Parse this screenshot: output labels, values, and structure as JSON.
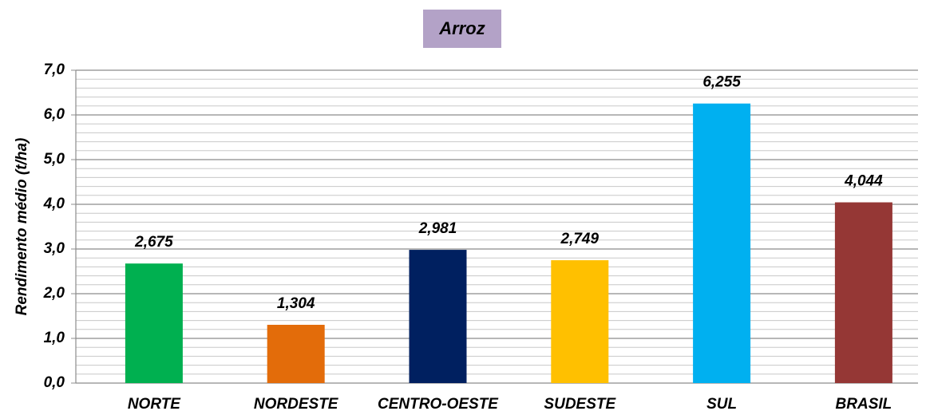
{
  "chart_data": {
    "type": "bar",
    "title": "Arroz",
    "ylabel": "Rendimento médio (t/ha)",
    "categories": [
      "NORTE",
      "NORDESTE",
      "CENTRO-OESTE",
      "SUDESTE",
      "SUL",
      "BRASIL"
    ],
    "values": [
      2.675,
      1.304,
      2.981,
      2.749,
      6.255,
      4.044
    ],
    "value_labels": [
      "2,675",
      "1,304",
      "2,981",
      "2,749",
      "6,255",
      "4,044"
    ],
    "colors": [
      "#00b050",
      "#e36c0a",
      "#002060",
      "#ffc000",
      "#00b0f0",
      "#953735"
    ],
    "ylim": [
      0,
      7
    ],
    "yticks": [
      {
        "value": 0,
        "label": "0,0"
      },
      {
        "value": 1,
        "label": "1,0"
      },
      {
        "value": 2,
        "label": "2,0"
      },
      {
        "value": 3,
        "label": "3,0"
      },
      {
        "value": 4,
        "label": "4,0"
      },
      {
        "value": 5,
        "label": "5,0"
      },
      {
        "value": 6,
        "label": "6,0"
      },
      {
        "value": 7,
        "label": "7,0"
      }
    ],
    "minor_yticks": [
      0.2,
      0.4,
      0.6,
      0.8,
      1.2,
      1.4,
      1.6,
      1.8,
      2.2,
      2.4,
      2.6,
      2.8,
      3.2,
      3.4,
      3.6,
      3.8,
      4.2,
      4.4,
      4.6,
      4.8,
      5.2,
      5.4,
      5.6,
      5.8,
      6.2,
      6.4,
      6.6,
      6.8
    ],
    "grid": true
  }
}
